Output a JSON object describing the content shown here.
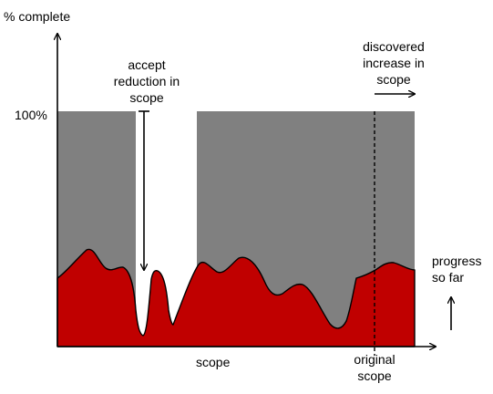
{
  "diagram": {
    "y_axis_label": "% complete",
    "x_axis_label": "scope",
    "hundred_label": "100%",
    "reduction_label": [
      "accept",
      "reduction in",
      "scope"
    ],
    "increase_label": [
      "discovered",
      "increase in",
      "scope"
    ],
    "progress_label": [
      "progress",
      "so far"
    ],
    "original_scope_label": [
      "original",
      "scope"
    ],
    "colors": {
      "scope_fill": "#808080",
      "progress_fill": "#c00000",
      "outline": "#000000",
      "background": "#ffffff"
    }
  }
}
